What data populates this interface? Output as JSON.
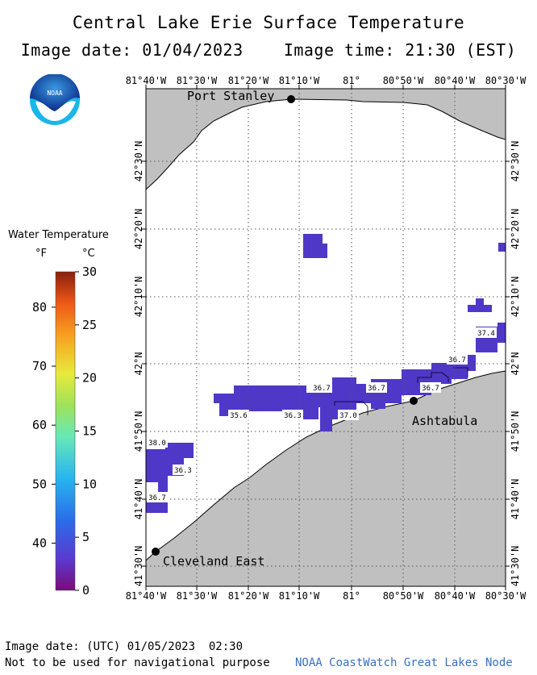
{
  "title": "Central Lake Erie Surface Temperature",
  "subtitle": {
    "date_label": "Image date: 01/04/2023",
    "time_label": "Image time: 21:30 (EST)"
  },
  "logo": {
    "text": "NOAA",
    "icon": "noaa-logo-icon"
  },
  "legend": {
    "title": "Water Temperature",
    "unit_f": "°F",
    "unit_c": "°C",
    "f_ticks": [
      "80",
      "70",
      "60",
      "50",
      "40"
    ],
    "c_ticks": [
      "30",
      "25",
      "20",
      "15",
      "10",
      "5",
      "0"
    ],
    "f_tick_values": [
      80,
      70,
      60,
      50,
      40
    ],
    "c_tick_values": [
      30,
      25,
      20,
      15,
      10,
      5,
      0
    ],
    "range_c": [
      0,
      30
    ]
  },
  "map": {
    "top_lon_labels": [
      "81°40'W",
      "81°30'W",
      "81°20'W",
      "81°10'W",
      "81°",
      "80°50'W",
      "80°40'W",
      "80°30'W"
    ],
    "bottom_lon_labels": [
      "81°40'W",
      "81°30'W",
      "81°20'W",
      "81°10'W",
      "81°",
      "80°50'W",
      "80°40'W",
      "80°30'W"
    ],
    "left_lat_labels": [
      "42°30'N",
      "42°20'N",
      "42°10'N",
      "42°N",
      "41°50'N",
      "41°40'N",
      "41°30'N"
    ],
    "right_lat_labels": [
      "42°30'N",
      "42°20'N",
      "42°10'N",
      "42°N",
      "41°50'N",
      "41°40'N",
      "41°30'N"
    ],
    "cities": [
      {
        "name": "Port Stanley"
      },
      {
        "name": "Ashtabula"
      },
      {
        "name": "Cleveland East"
      }
    ],
    "temp_labels": [
      "36.7",
      "36.7",
      "36.7",
      "37.4",
      "36.7",
      "35.6",
      "36.3",
      "37.0",
      "38.0",
      "36.3",
      "36.7"
    ],
    "colors": {
      "land": "#c0c0c0",
      "water": "#ffffff",
      "data": "#4f38c8",
      "grid": "#555555"
    }
  },
  "footer": {
    "date": "Image date: (UTC) 01/05/2023  02:30",
    "nav": "Not to be used for navigational purpose",
    "credit": "NOAA CoastWatch Great Lakes Node"
  }
}
